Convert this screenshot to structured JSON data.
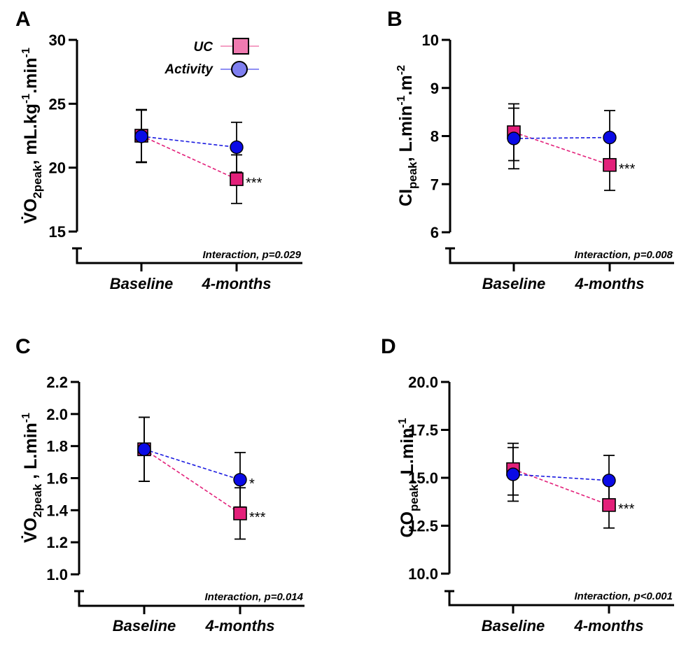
{
  "figure": {
    "legend": {
      "items": [
        {
          "label": "UC",
          "marker": "square",
          "color": "#f07ab0",
          "line_color": "#f4a0c4"
        },
        {
          "label": "Activity",
          "marker": "circle",
          "color": "#7f7ff0",
          "line_color": "#8f8ff4"
        }
      ]
    }
  },
  "series_style": {
    "UC": {
      "fill": "#e3207a",
      "line": "#e3207a",
      "marker": "square"
    },
    "Activity": {
      "fill": "#0a0ae6",
      "line": "#1a1ae0",
      "marker": "circle"
    }
  },
  "chart_data": [
    {
      "panel": "A",
      "type": "line",
      "title": "",
      "categories": [
        "Baseline",
        "4-months"
      ],
      "ylabel": {
        "base": "V̇O",
        "sub": "2peak",
        "rest": ", mL.kg",
        "sup1": "-1",
        "mid": ".min",
        "sup2": "-1"
      },
      "ylabel_text": "V̇O2peak, mL.kg-1.min-1",
      "xlabel": "",
      "ylim": [
        15,
        30
      ],
      "yticks": [
        15,
        20,
        25,
        30
      ],
      "ytick_labels": [
        "15",
        "20",
        "25",
        "30"
      ],
      "series": [
        {
          "name": "UC",
          "values": [
            22.5,
            19.1
          ],
          "errors": [
            2.05,
            1.9
          ],
          "sig": [
            "",
            "***"
          ]
        },
        {
          "name": "Activity",
          "values": [
            22.45,
            21.6
          ],
          "errors": [
            2.05,
            1.95
          ],
          "sig": [
            "",
            ""
          ]
        }
      ],
      "annotation": "Interaction, p=0.029",
      "legend": "top-right",
      "grid": false
    },
    {
      "panel": "B",
      "type": "line",
      "title": "",
      "categories": [
        "Baseline",
        "4-months"
      ],
      "ylabel": {
        "base": "CI",
        "sub": "peak",
        "rest": ", L.min",
        "sup1": "-1",
        "mid": ".m",
        "sup2": "-2"
      },
      "ylabel_text": "CIpeak, L.min-1.m-2",
      "xlabel": "",
      "ylim": [
        6,
        10
      ],
      "yticks": [
        6,
        7,
        8,
        9,
        10
      ],
      "ytick_labels": [
        "6",
        "7",
        "8",
        "9",
        "10"
      ],
      "series": [
        {
          "name": "UC",
          "values": [
            8.08,
            7.4
          ],
          "errors": [
            0.59,
            0.53
          ],
          "sig": [
            "",
            "***"
          ]
        },
        {
          "name": "Activity",
          "values": [
            7.95,
            7.97
          ],
          "errors": [
            0.63,
            0.56
          ],
          "sig": [
            "",
            ""
          ]
        }
      ],
      "annotation": "Interaction, p=0.008",
      "legend": "none",
      "grid": false
    },
    {
      "panel": "C",
      "type": "line",
      "title": "",
      "categories": [
        "Baseline",
        "4-months"
      ],
      "ylabel": {
        "base": "V̇O",
        "sub": "2peak",
        "rest": " , L.min",
        "sup1": "-1",
        "mid": "",
        "sup2": ""
      },
      "ylabel_text": "V̇O2peak , L.min-1",
      "xlabel": "",
      "ylim": [
        1.0,
        2.2
      ],
      "yticks": [
        1.0,
        1.2,
        1.4,
        1.6,
        1.8,
        2.0,
        2.2
      ],
      "ytick_labels": [
        "1.0",
        "1.2",
        "1.4",
        "1.6",
        "1.8",
        "2.0",
        "2.2"
      ],
      "series": [
        {
          "name": "UC",
          "values": [
            1.78,
            1.38
          ],
          "errors": [
            0.2,
            0.16
          ],
          "sig": [
            "",
            "***"
          ]
        },
        {
          "name": "Activity",
          "values": [
            1.78,
            1.59
          ],
          "errors": [
            0.2,
            0.17
          ],
          "sig": [
            "",
            "*"
          ]
        }
      ],
      "annotation": "Interaction, p=0.014",
      "legend": "none",
      "grid": false
    },
    {
      "panel": "D",
      "type": "line",
      "title": "",
      "categories": [
        "Baseline",
        "4-months"
      ],
      "ylabel": {
        "base": "CO",
        "sub": "peak",
        "rest": ", L.min",
        "sup1": "-1",
        "mid": "",
        "sup2": ""
      },
      "ylabel_text": "COpeak, L.min-1",
      "xlabel": "",
      "ylim": [
        10.0,
        20.0
      ],
      "yticks": [
        10.0,
        12.5,
        15.0,
        17.5,
        20.0
      ],
      "ytick_labels": [
        "10.0",
        "12.5",
        "15.0",
        "17.5",
        "20.0"
      ],
      "series": [
        {
          "name": "UC",
          "values": [
            15.45,
            13.58
          ],
          "errors": [
            1.35,
            1.2
          ],
          "sig": [
            "",
            "***"
          ]
        },
        {
          "name": "Activity",
          "values": [
            15.18,
            14.86
          ],
          "errors": [
            1.4,
            1.31
          ],
          "sig": [
            "",
            ""
          ]
        }
      ],
      "annotation": "Interaction, p<0.001",
      "legend": "none",
      "grid": false
    }
  ]
}
